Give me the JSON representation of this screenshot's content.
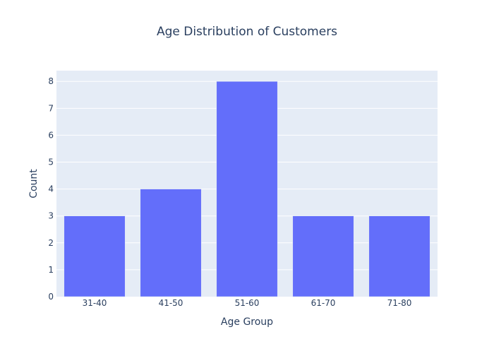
{
  "chart_data": {
    "type": "bar",
    "title": "Age Distribution of Customers",
    "xlabel": "Age Group",
    "ylabel": "Count",
    "categories": [
      "31-40",
      "41-50",
      "51-60",
      "61-70",
      "71-80"
    ],
    "values": [
      3,
      4,
      8,
      3,
      3
    ],
    "ylim": [
      0,
      8.4
    ],
    "yticks": [
      0,
      1,
      2,
      3,
      4,
      5,
      6,
      7,
      8
    ],
    "grid": true,
    "colors": {
      "bar": "#636efa",
      "plot_bg": "#e5ecf6",
      "grid": "#ffffff",
      "text": "#2a3f5f"
    }
  }
}
